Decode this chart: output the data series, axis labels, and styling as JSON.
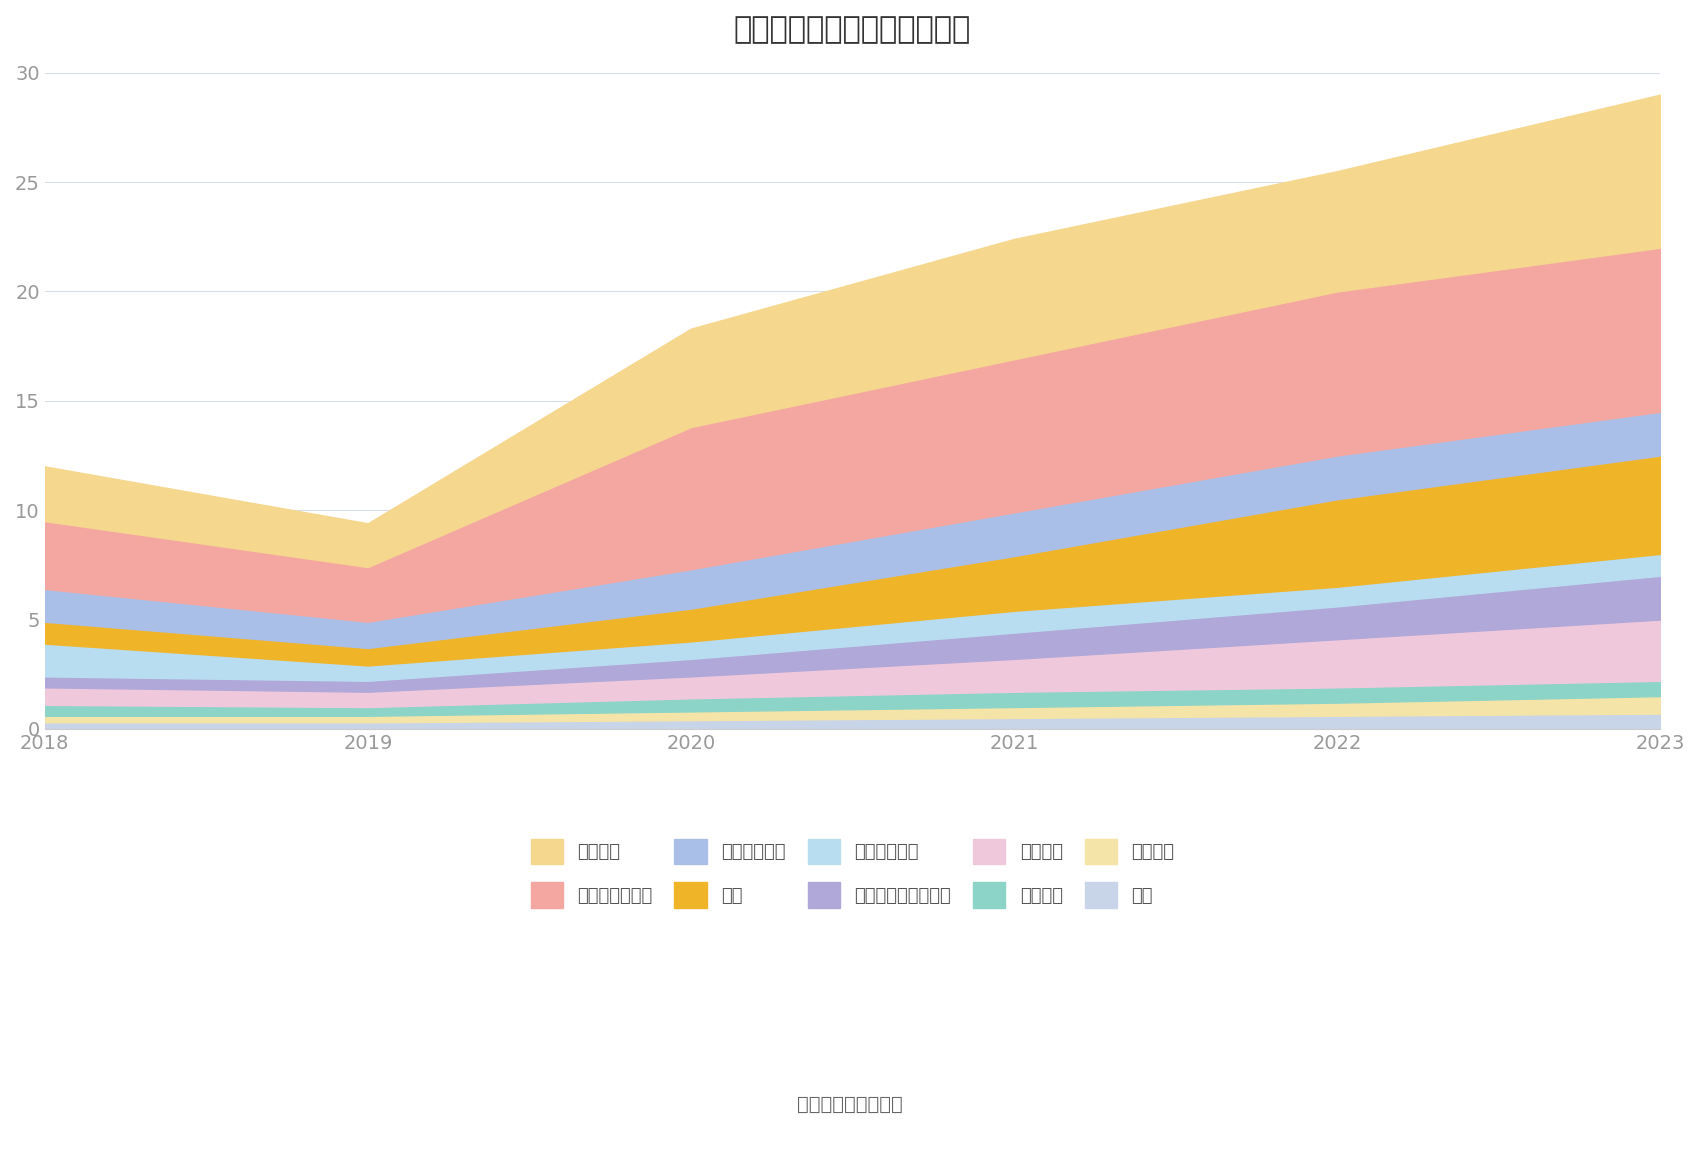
{
  "title": "历年主要资产堆积图（亿元）",
  "source": "数据来源：恒生聚源",
  "years": [
    2018,
    2019,
    2020,
    2021,
    2022,
    2023
  ],
  "series": [
    {
      "name": "其它",
      "color": "#C8D4E8",
      "values": [
        0.3,
        0.3,
        0.4,
        0.5,
        0.6,
        0.7
      ]
    },
    {
      "name": "无形资产",
      "color": "#F5E4A8",
      "values": [
        0.3,
        0.3,
        0.4,
        0.5,
        0.6,
        0.8
      ]
    },
    {
      "name": "在建工程",
      "color": "#8DD4C8",
      "values": [
        0.5,
        0.4,
        0.6,
        0.7,
        0.7,
        0.7
      ]
    },
    {
      "name": "固定资产",
      "color": "#F0C8DC",
      "values": [
        0.8,
        0.7,
        1.0,
        1.5,
        2.2,
        2.8
      ]
    },
    {
      "name": "其他非流动金融资产",
      "color": "#B0A8D8",
      "values": [
        0.5,
        0.5,
        0.8,
        1.2,
        1.5,
        2.0
      ]
    },
    {
      "name": "其他流动资产",
      "color": "#B8DCF0",
      "values": [
        1.5,
        0.7,
        0.8,
        1.0,
        0.9,
        1.0
      ]
    },
    {
      "name": "存货",
      "color": "#F0B429",
      "values": [
        1.0,
        0.8,
        1.5,
        2.5,
        4.0,
        4.5
      ]
    },
    {
      "name": "应收款项融资",
      "color": "#AABFE8",
      "values": [
        1.5,
        1.2,
        1.8,
        2.0,
        2.0,
        2.0
      ]
    },
    {
      "name": "交易性金融资产",
      "color": "#F4A7A0",
      "values": [
        3.1,
        2.5,
        6.5,
        7.0,
        7.5,
        7.5
      ]
    },
    {
      "name": "货币资金",
      "color": "#F5D78E",
      "values": [
        2.5,
        2.0,
        4.5,
        5.5,
        5.5,
        7.0
      ]
    }
  ],
  "ylim": [
    0,
    30
  ],
  "yticks": [
    0,
    5,
    10,
    15,
    20,
    25,
    30
  ],
  "background_color": "#FFFFFF",
  "grid_color": "#D8DCE8",
  "title_fontsize": 22,
  "tick_fontsize": 14,
  "tick_color": "#999999",
  "legend_fontsize": 13,
  "source_fontsize": 14
}
